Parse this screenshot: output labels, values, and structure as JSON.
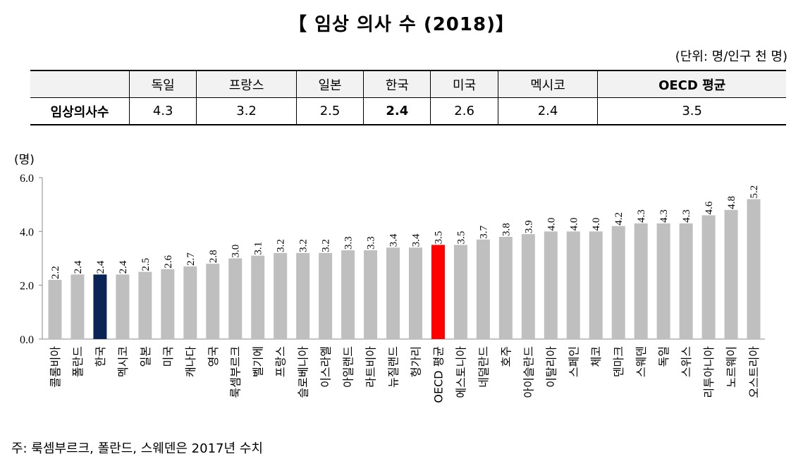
{
  "title": "【 임상 의사 수 (2018)】",
  "unit_note": "(단위: 명/인구 천 명)",
  "summary_table": {
    "row_label": "임상의사수",
    "columns": [
      "독일",
      "프랑스",
      "일본",
      "한국",
      "미국",
      "멕시코",
      "OECD 평균"
    ],
    "values": [
      "4.3",
      "3.2",
      "2.5",
      "2.4",
      "2.6",
      "2.4",
      "3.5"
    ]
  },
  "chart_data": {
    "type": "bar",
    "ylabel": "(명)",
    "ylim": [
      0,
      6
    ],
    "yticks": [
      "0.0",
      "2.0",
      "4.0",
      "6.0"
    ],
    "categories": [
      "콜롬비아",
      "폴란드",
      "한국",
      "멕시코",
      "일본",
      "미국",
      "캐나다",
      "영국",
      "룩셈부르크",
      "벨기에",
      "프랑스",
      "슬로베니아",
      "이스라엘",
      "아일랜드",
      "라트비아",
      "뉴질랜드",
      "헝가리",
      "OECD 평균",
      "에스토니아",
      "네덜란드",
      "호주",
      "아이슬란드",
      "이탈리아",
      "스페인",
      "체코",
      "덴마크",
      "스웨덴",
      "독일",
      "스위스",
      "리투아니아",
      "노르웨이",
      "오스트리아"
    ],
    "values": [
      2.2,
      2.4,
      2.4,
      2.4,
      2.5,
      2.6,
      2.7,
      2.8,
      3.0,
      3.1,
      3.2,
      3.2,
      3.2,
      3.3,
      3.3,
      3.4,
      3.4,
      3.5,
      3.5,
      3.7,
      3.8,
      3.9,
      4.0,
      4.0,
      4.0,
      4.2,
      4.3,
      4.3,
      4.3,
      4.6,
      4.8,
      5.2
    ],
    "value_labels": [
      "2.2",
      "2.4",
      "2.4",
      "2.4",
      "2.5",
      "2.6",
      "2.7",
      "2.8",
      "3.0",
      "3.1",
      "3.2",
      "3.2",
      "3.2",
      "3.3",
      "3.3",
      "3.4",
      "3.4",
      "3.5",
      "3.5",
      "3.7",
      "3.8",
      "3.9",
      "4.0",
      "4.0",
      "4.0",
      "4.2",
      "4.3",
      "4.3",
      "4.3",
      "4.6",
      "4.8",
      "5.2"
    ],
    "colors": {
      "default": "#bfbfbf",
      "korea": "#0a2456",
      "oecd": "#ff0000"
    },
    "highlight": {
      "한국": "korea",
      "OECD 평균": "oecd"
    },
    "grid": false
  },
  "footnote": "주: 룩셈부르크, 폴란드, 스웨덴은 2017년 수치"
}
